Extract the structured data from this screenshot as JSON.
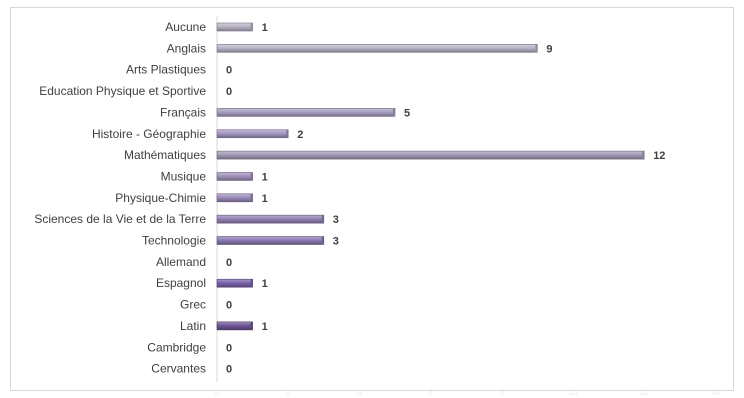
{
  "chart_data": {
    "type": "bar",
    "orientation": "horizontal",
    "title": "",
    "xlabel": "",
    "ylabel": "",
    "xlim": [
      0,
      14
    ],
    "xticks": [
      "0",
      "2",
      "4",
      "6",
      "8",
      "10",
      "12",
      "14"
    ],
    "grid": false,
    "legend": "none",
    "categories": [
      "Aucune",
      "Anglais",
      "Arts Plastiques",
      "Education Physique et Sportive",
      "Français",
      "Histoire - Géographie",
      "Mathématiques",
      "Musique",
      "Physique-Chimie",
      "Sciences de la Vie et de la Terre",
      "Technologie",
      "Allemand",
      "Espagnol",
      "Grec",
      "Latin",
      "Cambridge",
      "Cervantes"
    ],
    "values": [
      1,
      9,
      0,
      0,
      5,
      2,
      12,
      1,
      1,
      3,
      3,
      0,
      1,
      0,
      1,
      0,
      0
    ],
    "bar_colors": [
      "#b9b3c6",
      "#bab4c7",
      "#b6afc5",
      "#b0a8c3",
      "#a99fc1",
      "#a597c3",
      "#a59bba",
      "#a192bb",
      "#9c8cba",
      "#9384b6",
      "#8c7bb3",
      "#8472ae",
      "#7b63ac",
      "#7560a3",
      "#6f5497",
      "#694e91",
      "#624788"
    ]
  }
}
